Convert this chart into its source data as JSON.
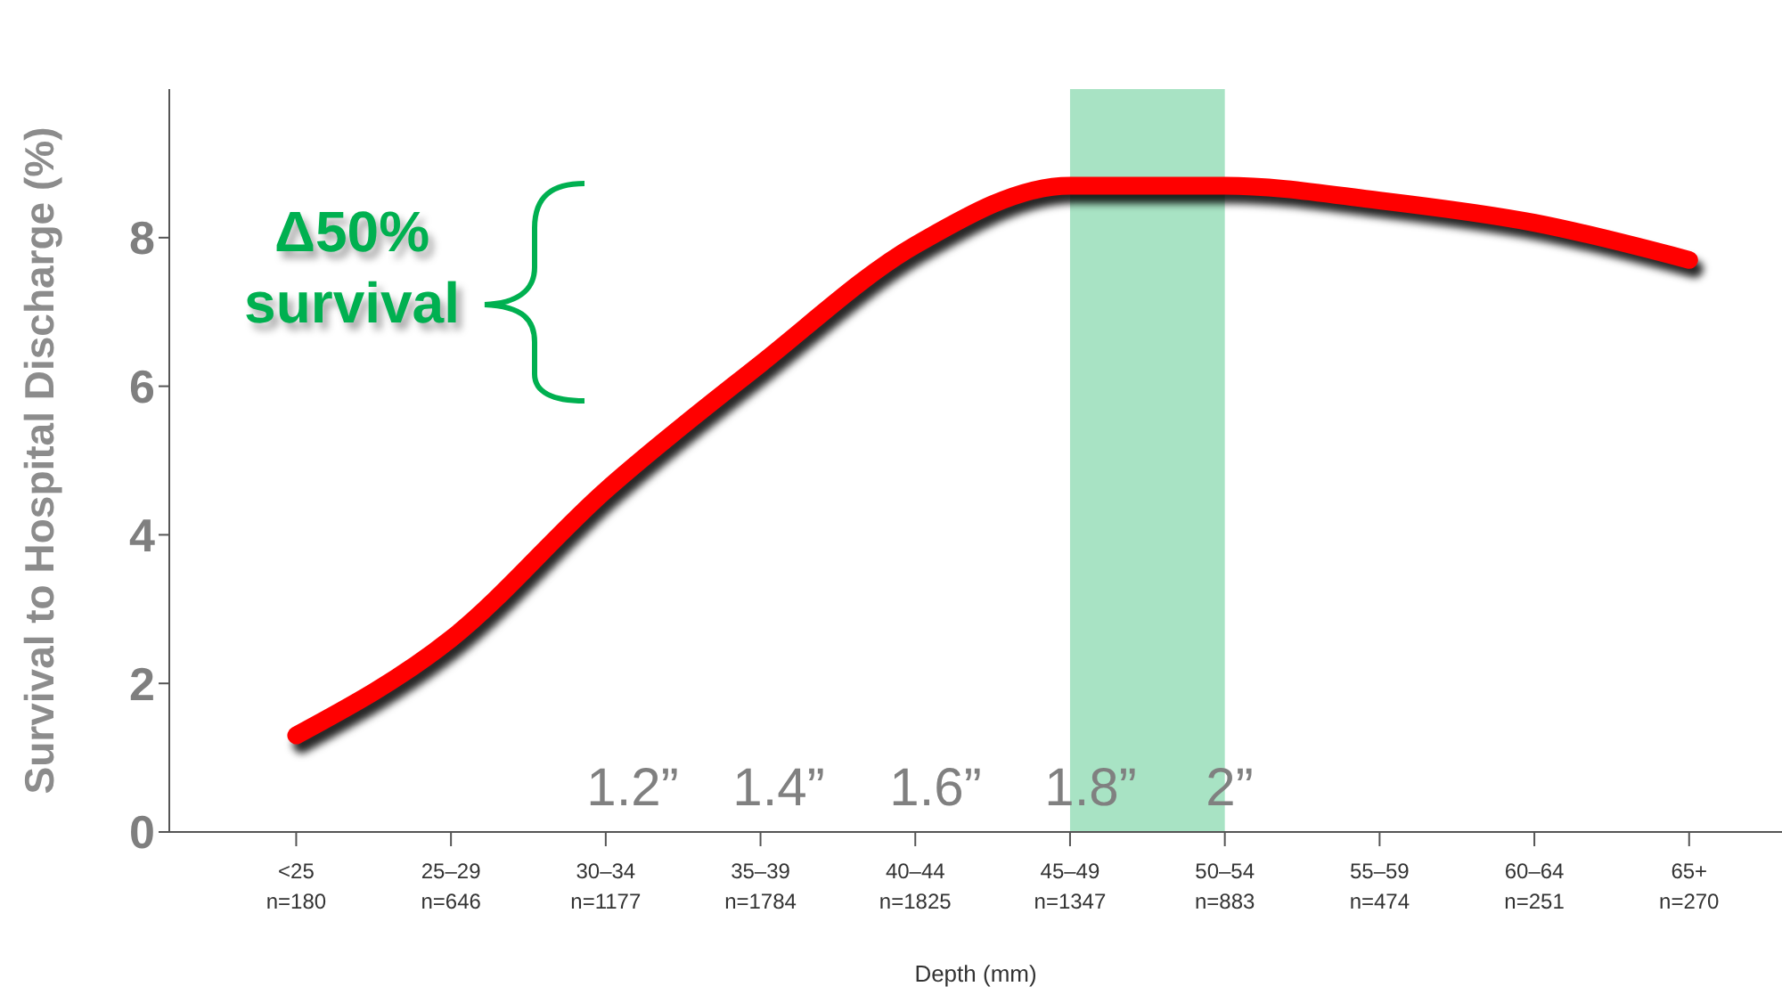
{
  "chart_data": {
    "type": "line",
    "xlabel": "Depth (mm)",
    "ylabel": "Survival to Hospital Discharge (%)",
    "categories": [
      "<25\nn=180",
      "25–29\nn=646",
      "30–34\nn=1177",
      "35–39\nn=1784",
      "40–44\nn=1825",
      "45–49\nn=1347",
      "50–54\nn=883",
      "55–59\nn=474",
      "60–64\nn=251",
      "65+\nn=270"
    ],
    "series": [
      {
        "color": "#ff0000",
        "values": [
          1.3,
          2.6,
          4.6,
          6.3,
          7.9,
          8.7,
          8.7,
          8.5,
          8.2,
          7.7
        ]
      }
    ],
    "ylim": [
      0,
      10
    ],
    "yticks": [
      0,
      2,
      4,
      6,
      8
    ],
    "bands": [
      {
        "axis": "x",
        "from": "45–49\nn=1347",
        "to": "50–54\nn=883",
        "color": "#a8e3c4"
      }
    ],
    "annotations": [
      "Δ50% survival",
      "1.2”",
      "1.4”",
      "1.6”",
      "1.8”",
      "2”"
    ],
    "grid": false,
    "legend": false,
    "marker": "none",
    "line_style": "solid"
  }
}
